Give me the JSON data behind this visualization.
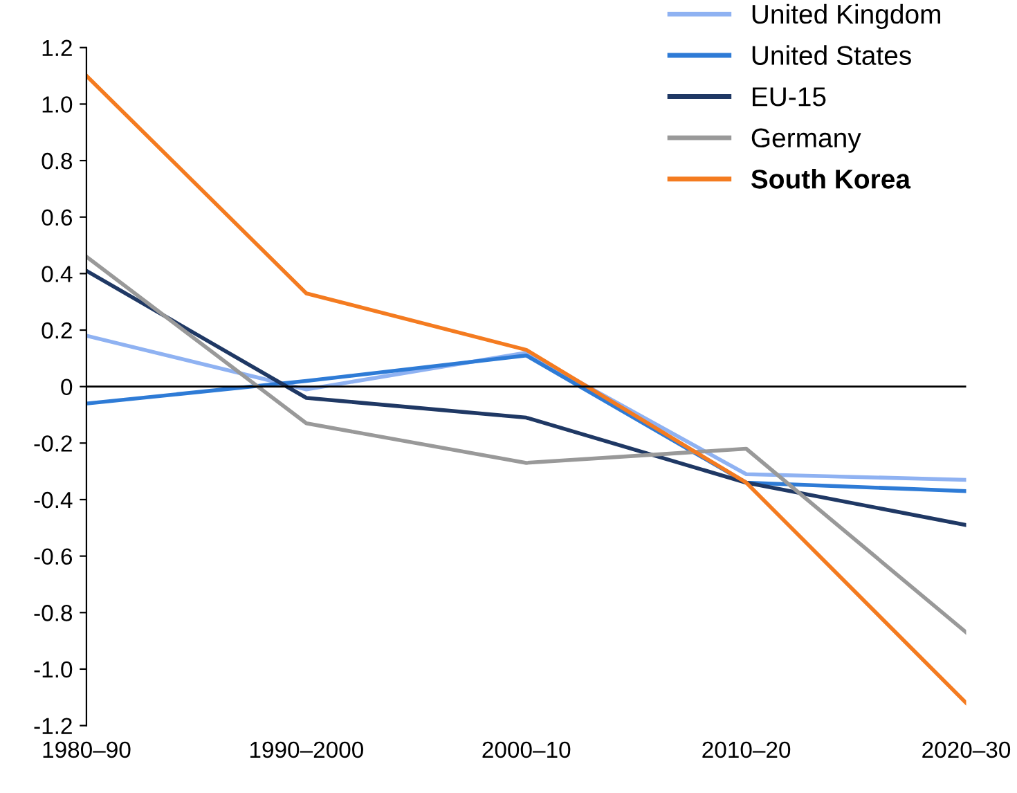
{
  "chart_data": {
    "type": "line",
    "categories": [
      "1980–90",
      "1990–2000",
      "2000–10",
      "2010–20",
      "2020–30"
    ],
    "series": [
      {
        "name": "United Kingdom",
        "color": "#8fb2f2",
        "values": [
          0.18,
          -0.01,
          0.12,
          -0.31,
          -0.33
        ]
      },
      {
        "name": "United States",
        "color": "#2e7bd6",
        "values": [
          -0.06,
          0.02,
          0.11,
          -0.34,
          -0.37
        ]
      },
      {
        "name": "EU-15",
        "color": "#1f3864",
        "values": [
          0.41,
          -0.04,
          -0.11,
          -0.34,
          -0.49
        ]
      },
      {
        "name": "Germany",
        "color": "#999999",
        "values": [
          0.46,
          -0.13,
          -0.27,
          -0.22,
          -0.87
        ]
      },
      {
        "name": "South Korea",
        "color": "#f47b20",
        "values": [
          1.1,
          0.33,
          0.13,
          -0.34,
          -1.12
        ]
      }
    ],
    "ylim": [
      -1.2,
      1.2
    ],
    "yticks": [
      -1.2,
      {
        "value": -1,
        "label": "-1.0"
      },
      -0.8,
      -0.6,
      -0.4,
      -0.2,
      0,
      0.2,
      0.4,
      0.6,
      0.8,
      {
        "value": 1,
        "label": "1.0"
      },
      1.2
    ],
    "ref_lines": [
      {
        "axis": "y",
        "value": 0,
        "color": "#000000"
      }
    ],
    "grid": false,
    "legend": "top right",
    "marker": "none",
    "line_style": "solid"
  }
}
